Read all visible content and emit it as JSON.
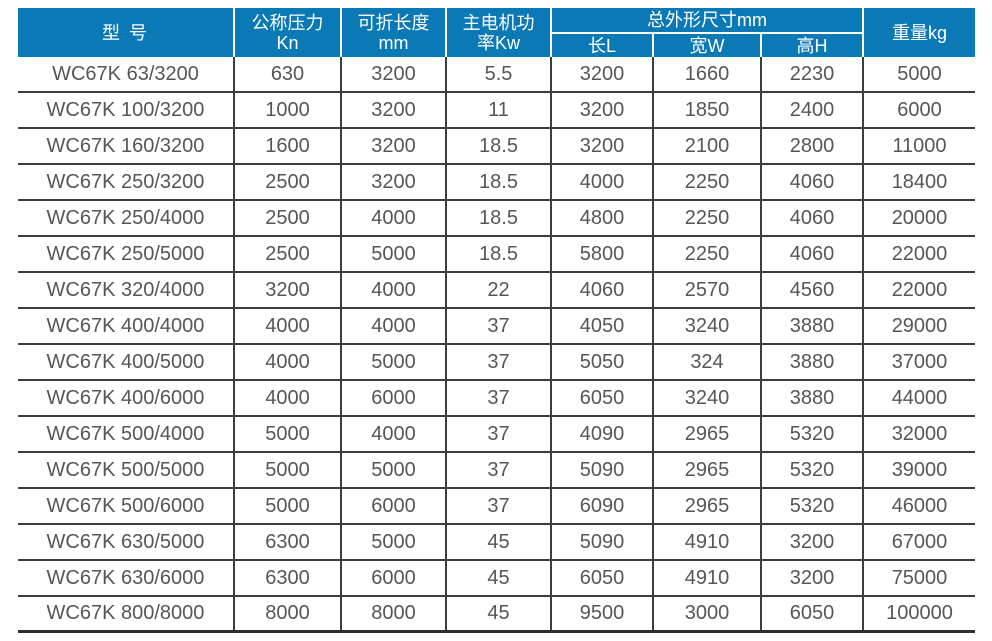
{
  "chart_data": {
    "type": "table",
    "title": "WC67K press brake specification table",
    "header": {
      "model": "型 号",
      "pressure": [
        "公称压力",
        "Kn"
      ],
      "fold_length": [
        "可折长度",
        "mm"
      ],
      "motor_power": [
        "主电机功",
        "率Kw"
      ],
      "dimensions_group": "总外形尺寸mm",
      "dim_length": "长L",
      "dim_width": "宽W",
      "dim_height": "高H",
      "weight": "重量kg"
    },
    "rows": [
      [
        "WC67K 63/3200",
        "630",
        "3200",
        "5.5",
        "3200",
        "1660",
        "2230",
        "5000"
      ],
      [
        "WC67K 100/3200",
        "1000",
        "3200",
        "11",
        "3200",
        "1850",
        "2400",
        "6000"
      ],
      [
        "WC67K 160/3200",
        "1600",
        "3200",
        "18.5",
        "3200",
        "2100",
        "2800",
        "11000"
      ],
      [
        "WC67K 250/3200",
        "2500",
        "3200",
        "18.5",
        "4000",
        "2250",
        "4060",
        "18400"
      ],
      [
        "WC67K 250/4000",
        "2500",
        "4000",
        "18.5",
        "4800",
        "2250",
        "4060",
        "20000"
      ],
      [
        "WC67K 250/5000",
        "2500",
        "5000",
        "18.5",
        "5800",
        "2250",
        "4060",
        "22000"
      ],
      [
        "WC67K 320/4000",
        "3200",
        "4000",
        "22",
        "4060",
        "2570",
        "4560",
        "22000"
      ],
      [
        "WC67K 400/4000",
        "4000",
        "4000",
        "37",
        "4050",
        "3240",
        "3880",
        "29000"
      ],
      [
        "WC67K 400/5000",
        "4000",
        "5000",
        "37",
        "5050",
        "324",
        "3880",
        "37000"
      ],
      [
        "WC67K 400/6000",
        "4000",
        "6000",
        "37",
        "6050",
        "3240",
        "3880",
        "44000"
      ],
      [
        "WC67K 500/4000",
        "5000",
        "4000",
        "37",
        "4090",
        "2965",
        "5320",
        "32000"
      ],
      [
        "WC67K 500/5000",
        "5000",
        "5000",
        "37",
        "5090",
        "2965",
        "5320",
        "39000"
      ],
      [
        "WC67K 500/6000",
        "5000",
        "6000",
        "37",
        "6090",
        "2965",
        "5320",
        "46000"
      ],
      [
        "WC67K 630/5000",
        "6300",
        "5000",
        "45",
        "5090",
        "4910",
        "3200",
        "67000"
      ],
      [
        "WC67K 630/6000",
        "6300",
        "6000",
        "45",
        "6050",
        "4910",
        "3200",
        "75000"
      ],
      [
        "WC67K 800/8000",
        "8000",
        "8000",
        "45",
        "9500",
        "3000",
        "6050",
        "100000"
      ]
    ],
    "layout": {
      "grid": "on",
      "header_rows": 2,
      "dimension_subcolumns": [
        "长L",
        "宽W",
        "高H"
      ]
    },
    "colors": {
      "header_bg": "#0a79b5",
      "header_text": "#ffffff",
      "body_text": "#54565a",
      "grid_line": "#3d3d3f"
    }
  }
}
